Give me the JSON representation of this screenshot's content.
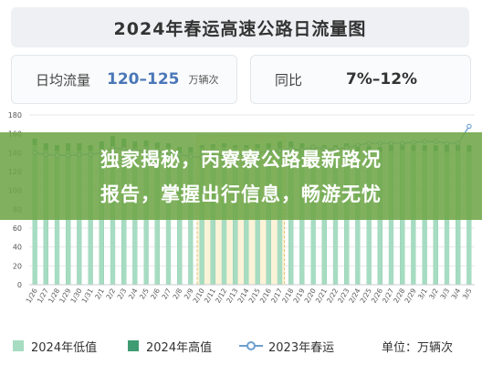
{
  "header": {
    "title": "2024年春运高速公路日流量图"
  },
  "stats": {
    "avg_label": "日均流量",
    "avg_value": "120–125",
    "avg_unit": "万辆次",
    "yoy_label": "同比",
    "yoy_value": "7%–12%"
  },
  "banner": {
    "line1": "独家揭秘，丙寮寮公路最新路况",
    "line2": "报告，掌握出行信息，畅游无忧"
  },
  "legend": {
    "low": "2024年低值",
    "high": "2024年高值",
    "prev": "2023年春运",
    "unit": "单位：万辆次"
  },
  "colors": {
    "low": "#a6dcc1",
    "high": "#3f9b71",
    "prev": "#6a9fd0",
    "title_text": "#333333",
    "value_text": "#4a77b8"
  },
  "chart_data": {
    "type": "bar",
    "title": "2024年春运高速公路日流量图",
    "ylim": [
      0,
      180
    ],
    "yticks": [
      0,
      20,
      40,
      60,
      80,
      100,
      120,
      140,
      160,
      180
    ],
    "categories": [
      "1/26",
      "1/27",
      "1/28",
      "1/29",
      "1/30",
      "1/31",
      "2/1",
      "2/2",
      "2/3",
      "2/4",
      "2/5",
      "2/6",
      "2/7",
      "2/8",
      "2/9",
      "2/10",
      "2/11",
      "2/12",
      "2/13",
      "2/14",
      "2/15",
      "2/16",
      "2/17",
      "2/18",
      "2/19",
      "2/20",
      "2/21",
      "2/22",
      "2/23",
      "2/24",
      "2/25",
      "2/26",
      "2/27",
      "2/28",
      "2/29",
      "3/1",
      "3/2",
      "3/3",
      "3/4",
      "3/5"
    ],
    "series": [
      {
        "name": "2024年低值",
        "values": [
          148,
          143,
          142,
          142,
          142,
          142,
          144,
          145,
          145,
          145,
          147,
          145,
          145,
          140,
          140,
          145,
          145,
          146,
          145,
          145,
          145,
          145,
          145,
          145,
          143,
          142,
          142,
          142,
          142,
          142,
          142,
          141,
          142,
          143,
          142,
          142,
          142,
          141,
          142,
          141
        ]
      },
      {
        "name": "2024年高值",
        "values": [
          155,
          150,
          148,
          150,
          150,
          148,
          152,
          158,
          155,
          152,
          153,
          151,
          150,
          146,
          146,
          148,
          149,
          150,
          148,
          148,
          149,
          150,
          152,
          152,
          150,
          148,
          148,
          148,
          150,
          150,
          147,
          146,
          148,
          150,
          148,
          148,
          148,
          148,
          148,
          148
        ]
      },
      {
        "name": "2023年春运",
        "values": [
          140,
          138,
          137,
          137,
          138,
          138,
          140,
          145,
          144,
          142,
          143,
          141,
          140,
          138,
          136,
          135,
          136,
          138,
          138,
          138,
          140,
          142,
          142,
          144,
          143,
          146,
          144,
          144,
          145,
          148,
          150,
          150,
          150,
          150,
          151,
          152,
          152,
          150,
          150,
          168
        ]
      }
    ]
  }
}
